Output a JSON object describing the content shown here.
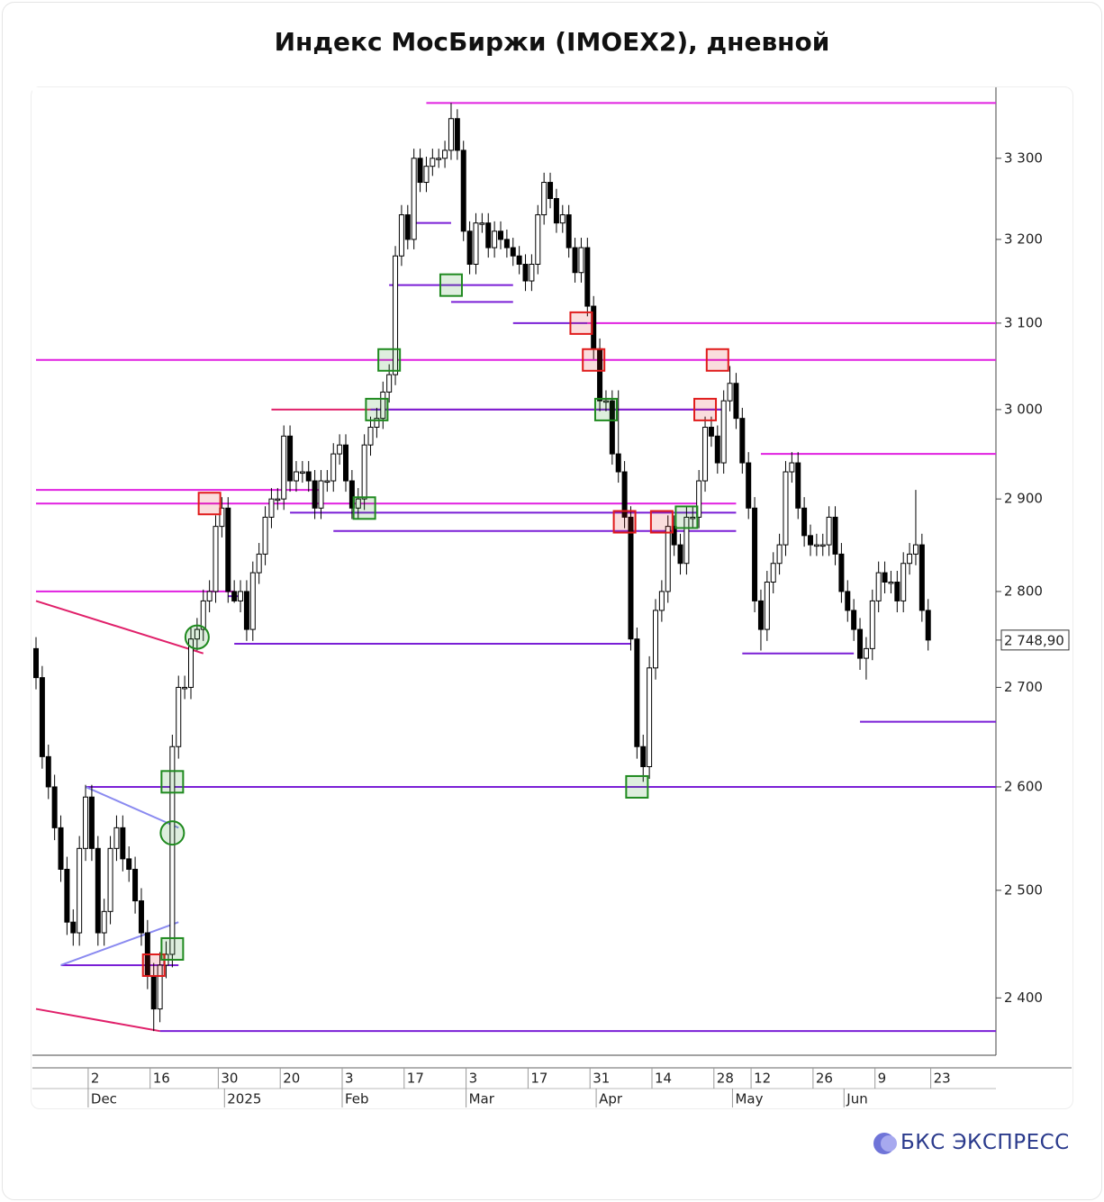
{
  "chart_data": {
    "type": "candlestick",
    "title": "Индекс МосБиржи (IMOEX2), дневной",
    "log_scale": true,
    "colors": {
      "up": "#ffffff",
      "down": "#000000",
      "edge": "#000000"
    },
    "ylim": [
      2350,
      3390
    ],
    "yticks": [
      {
        "value": 2400,
        "label": "2 400"
      },
      {
        "value": 2500,
        "label": "2 500"
      },
      {
        "value": 2600,
        "label": "2 600"
      },
      {
        "value": 2700,
        "label": "2 700"
      },
      {
        "value": 2800,
        "label": "2 800"
      },
      {
        "value": 2900,
        "label": "2 900"
      },
      {
        "value": 3000,
        "label": "3 000"
      },
      {
        "value": 3100,
        "label": "3 100"
      },
      {
        "value": 3200,
        "label": "3 200"
      },
      {
        "value": 3300,
        "label": "3 300"
      }
    ],
    "last_label": "2 748,90",
    "x": [
      "2024-11-19",
      "2024-11-20",
      "2024-11-21",
      "2024-11-22",
      "2024-11-25",
      "2024-11-26",
      "2024-11-27",
      "2024-11-28",
      "2024-11-29",
      "2024-12-02",
      "2024-12-03",
      "2024-12-04",
      "2024-12-05",
      "2024-12-06",
      "2024-12-09",
      "2024-12-10",
      "2024-12-11",
      "2024-12-12",
      "2024-12-13",
      "2024-12-16",
      "2024-12-17",
      "2024-12-18",
      "2024-12-19",
      "2024-12-20",
      "2024-12-23",
      "2024-12-24",
      "2024-12-25",
      "2024-12-26",
      "2024-12-27",
      "2024-12-28",
      "2024-12-30",
      "2025-01-03",
      "2025-01-06",
      "2025-01-09",
      "2025-01-10",
      "2025-01-13",
      "2025-01-14",
      "2025-01-15",
      "2025-01-16",
      "2025-01-17",
      "2025-01-20",
      "2025-01-21",
      "2025-01-22",
      "2025-01-23",
      "2025-01-24",
      "2025-01-27",
      "2025-01-28",
      "2025-01-29",
      "2025-01-30",
      "2025-01-31",
      "2025-02-03",
      "2025-02-04",
      "2025-02-05",
      "2025-02-06",
      "2025-02-07",
      "2025-02-10",
      "2025-02-11",
      "2025-02-12",
      "2025-02-13",
      "2025-02-14",
      "2025-02-17",
      "2025-02-18",
      "2025-02-19",
      "2025-02-20",
      "2025-02-21",
      "2025-02-24",
      "2025-02-25",
      "2025-02-26",
      "2025-02-27",
      "2025-02-28",
      "2025-03-03",
      "2025-03-04",
      "2025-03-05",
      "2025-03-06",
      "2025-03-07",
      "2025-03-10",
      "2025-03-11",
      "2025-03-12",
      "2025-03-13",
      "2025-03-14",
      "2025-03-17",
      "2025-03-18",
      "2025-03-19",
      "2025-03-20",
      "2025-03-21",
      "2025-03-24",
      "2025-03-25",
      "2025-03-26",
      "2025-03-27",
      "2025-03-28",
      "2025-03-31",
      "2025-04-01",
      "2025-04-02",
      "2025-04-03",
      "2025-04-04",
      "2025-04-07",
      "2025-04-08",
      "2025-04-09",
      "2025-04-10",
      "2025-04-11",
      "2025-04-14",
      "2025-04-15",
      "2025-04-16",
      "2025-04-17",
      "2025-04-18",
      "2025-04-21",
      "2025-04-22",
      "2025-04-23",
      "2025-04-24",
      "2025-04-25",
      "2025-04-28",
      "2025-04-29",
      "2025-04-30",
      "2025-05-05",
      "2025-05-06",
      "2025-05-07",
      "2025-05-12",
      "2025-05-13",
      "2025-05-14",
      "2025-05-15",
      "2025-05-16",
      "2025-05-19",
      "2025-05-20",
      "2025-05-21",
      "2025-05-22",
      "2025-05-23",
      "2025-05-26",
      "2025-05-27",
      "2025-05-28",
      "2025-05-29",
      "2025-05-30",
      "2025-06-02",
      "2025-06-03",
      "2025-06-04",
      "2025-06-05",
      "2025-06-06",
      "2025-06-09",
      "2025-06-10",
      "2025-06-11",
      "2025-06-13",
      "2025-06-16",
      "2025-06-17",
      "2025-06-18",
      "2025-06-19",
      "2025-06-20"
    ],
    "open": [
      2740,
      2710,
      2630,
      2600,
      2560,
      2520,
      2470,
      2460,
      2540,
      2590,
      2540,
      2460,
      2480,
      2540,
      2560,
      2530,
      2520,
      2490,
      2460,
      2420,
      2390,
      2430,
      2440,
      2640,
      2700,
      2700,
      2750,
      2760,
      2790,
      2800,
      2870,
      2890,
      2800,
      2790,
      2800,
      2760,
      2820,
      2840,
      2880,
      2900,
      2900,
      2970,
      2920,
      2930,
      2930,
      2920,
      2890,
      2920,
      2920,
      2950,
      2960,
      2920,
      2890,
      2900,
      2960,
      2980,
      2990,
      3020,
      3040,
      3180,
      3230,
      3200,
      3300,
      3270,
      3290,
      3300,
      3300,
      3310,
      3350,
      3310,
      3210,
      3170,
      3220,
      3220,
      3190,
      3210,
      3200,
      3190,
      3180,
      3170,
      3150,
      3170,
      3230,
      3270,
      3250,
      3220,
      3230,
      3190,
      3160,
      3190,
      3120,
      3070,
      3010,
      3010,
      2950,
      2930,
      2880,
      2750,
      2640,
      2620,
      2720,
      2780,
      2800,
      2870,
      2850,
      2830,
      2880,
      2880,
      2920,
      2980,
      2970,
      2940,
      3010,
      3030,
      2990,
      2940,
      2890,
      2790,
      2760,
      2810,
      2830,
      2850,
      2930,
      2940,
      2890,
      2860,
      2850,
      2850,
      2850,
      2880,
      2840,
      2800,
      2780,
      2760,
      2730,
      2740,
      2790,
      2820,
      2810,
      2810,
      2790,
      2830,
      2840,
      2850,
      2780
    ],
    "high": [
      2752,
      2722,
      2642,
      2612,
      2572,
      2532,
      2482,
      2552,
      2602,
      2602,
      2552,
      2492,
      2552,
      2572,
      2572,
      2542,
      2532,
      2502,
      2472,
      2432,
      2442,
      2452,
      2652,
      2712,
      2712,
      2762,
      2772,
      2802,
      2812,
      2882,
      2902,
      2902,
      2812,
      2812,
      2812,
      2832,
      2852,
      2892,
      2912,
      2912,
      2982,
      2982,
      2942,
      2942,
      2942,
      2932,
      2932,
      2932,
      2962,
      2972,
      2972,
      2932,
      2912,
      2972,
      2992,
      3002,
      3032,
      3052,
      3192,
      3242,
      3242,
      3312,
      3312,
      3302,
      3312,
      3312,
      3322,
      3370,
      3362,
      3322,
      3222,
      3232,
      3232,
      3232,
      3222,
      3222,
      3212,
      3202,
      3192,
      3182,
      3182,
      3242,
      3282,
      3282,
      3262,
      3242,
      3242,
      3202,
      3202,
      3202,
      3132,
      3082,
      3022,
      3022,
      3022,
      2942,
      2892,
      2762,
      2652,
      2732,
      2792,
      2812,
      2882,
      2882,
      2862,
      2892,
      2892,
      2932,
      2992,
      2992,
      2982,
      3022,
      3050,
      3042,
      3002,
      2952,
      2902,
      2802,
      2822,
      2842,
      2862,
      2942,
      2952,
      2952,
      2902,
      2872,
      2862,
      2862,
      2892,
      2892,
      2852,
      2812,
      2792,
      2772,
      2752,
      2802,
      2832,
      2832,
      2822,
      2822,
      2842,
      2852,
      2910,
      2862,
      2792
    ],
    "low": [
      2698,
      2618,
      2588,
      2548,
      2508,
      2458,
      2448,
      2448,
      2528,
      2528,
      2448,
      2448,
      2468,
      2528,
      2518,
      2508,
      2478,
      2448,
      2408,
      2370,
      2378,
      2418,
      2428,
      2628,
      2688,
      2688,
      2738,
      2748,
      2778,
      2788,
      2858,
      2788,
      2788,
      2778,
      2748,
      2748,
      2808,
      2828,
      2868,
      2888,
      2888,
      2908,
      2908,
      2918,
      2908,
      2878,
      2878,
      2908,
      2908,
      2938,
      2908,
      2878,
      2878,
      2888,
      2948,
      2968,
      2978,
      3008,
      3028,
      3168,
      3188,
      3188,
      3258,
      3258,
      3278,
      3288,
      3288,
      3298,
      3298,
      3198,
      3158,
      3158,
      3208,
      3178,
      3178,
      3188,
      3178,
      3168,
      3158,
      3138,
      3138,
      3158,
      3218,
      3238,
      3208,
      3208,
      3178,
      3148,
      3148,
      3108,
      3058,
      2998,
      2998,
      2938,
      2918,
      2868,
      2738,
      2628,
      2605,
      2608,
      2708,
      2768,
      2788,
      2838,
      2818,
      2818,
      2868,
      2868,
      2908,
      2958,
      2928,
      2928,
      2998,
      2978,
      2928,
      2878,
      2778,
      2738,
      2748,
      2798,
      2818,
      2838,
      2918,
      2878,
      2848,
      2838,
      2838,
      2838,
      2838,
      2828,
      2788,
      2768,
      2748,
      2718,
      2708,
      2728,
      2778,
      2798,
      2798,
      2778,
      2778,
      2818,
      2828,
      2768,
      2738
    ],
    "close": [
      2710,
      2630,
      2600,
      2560,
      2520,
      2470,
      2460,
      2540,
      2590,
      2540,
      2460,
      2480,
      2540,
      2560,
      2530,
      2520,
      2490,
      2460,
      2420,
      2390,
      2430,
      2440,
      2640,
      2700,
      2700,
      2750,
      2760,
      2790,
      2800,
      2870,
      2890,
      2800,
      2790,
      2800,
      2760,
      2820,
      2840,
      2880,
      2900,
      2900,
      2970,
      2920,
      2930,
      2930,
      2920,
      2890,
      2920,
      2920,
      2950,
      2960,
      2920,
      2890,
      2900,
      2960,
      2980,
      2990,
      3020,
      3040,
      3180,
      3230,
      3200,
      3300,
      3270,
      3290,
      3300,
      3300,
      3310,
      3350,
      3310,
      3210,
      3170,
      3220,
      3220,
      3190,
      3210,
      3200,
      3190,
      3180,
      3170,
      3150,
      3170,
      3230,
      3270,
      3250,
      3220,
      3230,
      3190,
      3160,
      3190,
      3120,
      3070,
      3010,
      3010,
      2950,
      2930,
      2880,
      2750,
      2640,
      2620,
      2720,
      2780,
      2800,
      2870,
      2850,
      2830,
      2880,
      2880,
      2920,
      2980,
      2970,
      2940,
      3010,
      3030,
      2990,
      2940,
      2890,
      2790,
      2760,
      2810,
      2830,
      2850,
      2930,
      2940,
      2890,
      2860,
      2850,
      2850,
      2850,
      2880,
      2840,
      2800,
      2780,
      2760,
      2730,
      2740,
      2790,
      2820,
      2810,
      2810,
      2790,
      2830,
      2840,
      2850,
      2780,
      2748.9
    ],
    "xticks": [
      {
        "value": "2024-12-02",
        "label": "2"
      },
      {
        "value": "2024-12-16",
        "label": "16"
      },
      {
        "value": "2024-12-30",
        "label": "30"
      },
      {
        "value": "2025-01-20",
        "label": "20"
      },
      {
        "value": "2025-02-03",
        "label": "3"
      },
      {
        "value": "2025-02-17",
        "label": "17"
      },
      {
        "value": "2025-03-03",
        "label": "3"
      },
      {
        "value": "2025-03-17",
        "label": "17"
      },
      {
        "value": "2025-03-31",
        "label": "31"
      },
      {
        "value": "2025-04-14",
        "label": "14"
      },
      {
        "value": "2025-04-28",
        "label": "28"
      },
      {
        "value": "2025-05-12",
        "label": "12"
      },
      {
        "value": "2025-05-26",
        "label": "26"
      },
      {
        "value": "2025-06-09",
        "label": "9"
      },
      {
        "value": "2025-06-23",
        "label": "23"
      }
    ],
    "month_ticks": [
      {
        "value": "2024-12-02",
        "label": "Dec"
      },
      {
        "value": "2025-01-03",
        "label": "2025"
      },
      {
        "value": "2025-02-03",
        "label": "Feb"
      },
      {
        "value": "2025-03-03",
        "label": "Mar"
      },
      {
        "value": "2025-04-01",
        "label": "Apr"
      },
      {
        "value": "2025-05-05",
        "label": "May"
      },
      {
        "value": "2025-06-02",
        "label": "Jun"
      }
    ],
    "levels": [
      {
        "value": 3370,
        "from": "2025-02-20",
        "color": "#e020e0"
      },
      {
        "value": 3100,
        "from": "2025-03-28",
        "color": "#e020e0"
      },
      {
        "value": 3057,
        "from": "2024-11-19",
        "color": "#e020e0"
      },
      {
        "value": 2950,
        "from": "2025-05-13",
        "color": "#e020e0"
      },
      {
        "value": 2910,
        "from": "2024-11-19",
        "to": "2025-01-28",
        "color": "#e020e0"
      },
      {
        "value": 2895,
        "from": "2024-11-19",
        "to": "2025-05-05",
        "color": "#e020e0"
      },
      {
        "value": 2800,
        "from": "2024-11-19",
        "to": "2025-01-06",
        "color": "#e020e0"
      },
      {
        "value": 3000,
        "from": "2025-01-16",
        "to": "2025-04-29",
        "color": "#e0206a"
      },
      {
        "value": 3000,
        "from": "2025-02-07",
        "to": "2025-04-29",
        "color": "#7a1fd6"
      },
      {
        "value": 2600,
        "from": "2024-11-29",
        "color": "#7a1fd6"
      },
      {
        "value": 2370,
        "from": "2024-12-17",
        "color": "#7a1fd6"
      },
      {
        "value": 2665,
        "from": "2025-06-04",
        "color": "#7a1fd6"
      },
      {
        "value": 2745,
        "from": "2025-01-06",
        "to": "2025-04-08",
        "color": "#7a1fd6"
      },
      {
        "value": 2735,
        "from": "2025-05-06",
        "to": "2025-06-03",
        "color": "#7a1fd6"
      },
      {
        "value": 2885,
        "from": "2025-01-21",
        "to": "2025-05-05",
        "color": "#7a1fd6"
      },
      {
        "value": 2865,
        "from": "2025-01-30",
        "to": "2025-05-05",
        "color": "#7a1fd6"
      },
      {
        "value": 2795,
        "from": "2025-01-03",
        "to": "2025-01-09",
        "color": "#7a1fd6"
      },
      {
        "value": 3100,
        "from": "2025-03-12",
        "to": "2025-03-28",
        "color": "#7a1fd6"
      },
      {
        "value": 3220,
        "from": "2025-02-18",
        "to": "2025-02-26",
        "color": "#7a1fd6"
      },
      {
        "value": 3145,
        "from": "2025-02-12",
        "to": "2025-03-12",
        "color": "#7a1fd6"
      },
      {
        "value": 3125,
        "from": "2025-02-26",
        "to": "2025-03-12",
        "color": "#7a1fd6"
      },
      {
        "value": 2430,
        "from": "2024-11-25",
        "to": "2024-12-20",
        "color": "#7a1fd6"
      }
    ],
    "trendlines": [
      {
        "from": [
          "2024-11-19",
          2790
        ],
        "to": [
          "2024-12-26",
          2735
        ],
        "color": "#e0206a"
      },
      {
        "from": [
          "2024-11-19",
          2390
        ],
        "to": [
          "2024-12-17",
          2370
        ],
        "color": "#e0206a"
      },
      {
        "from": [
          "2024-11-29",
          2600
        ],
        "to": [
          "2024-12-20",
          2560
        ],
        "color": "#8a8af0"
      },
      {
        "from": [
          "2024-11-25",
          2430
        ],
        "to": [
          "2024-12-20",
          2470
        ],
        "color": "#8a8af0"
      }
    ],
    "boxes": [
      {
        "date": "2024-12-16",
        "value": 2430,
        "color": "#e01b1b"
      },
      {
        "date": "2024-12-27",
        "value": 2895,
        "color": "#e01b1b"
      },
      {
        "date": "2025-03-27",
        "value": 3100,
        "color": "#e01b1b"
      },
      {
        "date": "2025-03-31",
        "value": 3057,
        "color": "#e01b1b"
      },
      {
        "date": "2025-04-07",
        "value": 2875,
        "color": "#e01b1b"
      },
      {
        "date": "2025-04-15",
        "value": 2875,
        "color": "#e01b1b"
      },
      {
        "date": "2025-04-24",
        "value": 3000,
        "color": "#e01b1b"
      },
      {
        "date": "2025-04-28",
        "value": 3057,
        "color": "#e01b1b"
      },
      {
        "date": "2024-12-19",
        "value": 2445,
        "color": "#1f8a1f"
      },
      {
        "date": "2024-12-19",
        "value": 2605,
        "color": "#1f8a1f"
      },
      {
        "date": "2025-02-06",
        "value": 2890,
        "color": "#1f8a1f"
      },
      {
        "date": "2025-02-10",
        "value": 3000,
        "color": "#1f8a1f"
      },
      {
        "date": "2025-02-12",
        "value": 3057,
        "color": "#1f8a1f"
      },
      {
        "date": "2025-02-26",
        "value": 3145,
        "color": "#1f8a1f"
      },
      {
        "date": "2025-04-02",
        "value": 3000,
        "color": "#1f8a1f"
      },
      {
        "date": "2025-04-09",
        "value": 2600,
        "color": "#1f8a1f"
      },
      {
        "date": "2025-04-21",
        "value": 2880,
        "color": "#1f8a1f"
      }
    ],
    "circles": [
      {
        "date": "2024-12-19",
        "value": 2555,
        "color": "#1f8a1f"
      },
      {
        "date": "2024-12-25",
        "value": 2752,
        "color": "#1f8a1f"
      }
    ]
  },
  "brand": "БКС ЭКСПРЕСС"
}
